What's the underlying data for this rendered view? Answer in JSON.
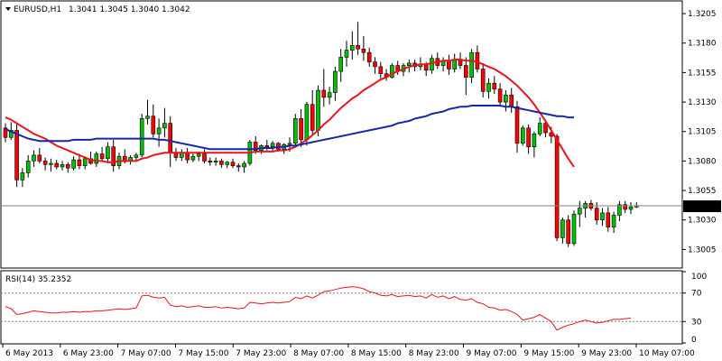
{
  "header": {
    "symbol": "EURUSD,H1",
    "ohlc": "1.3041 1.3045 1.3040 1.3042"
  },
  "rsi_header": {
    "label": "RSI(14) 35.2352"
  },
  "colors": {
    "background": "#ffffff",
    "frame": "#000000",
    "bull": "#00c000",
    "bear": "#ff0000",
    "wick": "#000000",
    "ma_fast": "#e8141e",
    "ma_slow": "#1428a8",
    "rsi_line": "#e8141e",
    "level_line": "#808080",
    "price_marker_bg": "#000000",
    "price_marker_fg": "#ffffff"
  },
  "icons": {
    "header_dropdown": "triangle-down-icon"
  },
  "chart_data": [
    {
      "type": "candlestick",
      "title": "EURUSD,H1",
      "ylim": [
        1.299,
        1.3215
      ],
      "y_ticks": [
        "1.3205",
        "1.3180",
        "1.3155",
        "1.3130",
        "1.3105",
        "1.3080",
        "1.3055",
        "1.3030",
        "1.3005"
      ],
      "x_ticks": [
        "6 May 2013",
        "6 May 23:00",
        "7 May 07:00",
        "7 May 15:00",
        "7 May 23:00",
        "8 May 07:00",
        "8 May 15:00",
        "8 May 23:00",
        "9 May 07:00",
        "9 May 15:00",
        "9 May 23:00",
        "10 May 07:00"
      ],
      "current_price": "1.3042",
      "candles": [
        [
          1.3108,
          1.3112,
          1.3096,
          1.31
        ],
        [
          1.31,
          1.3113,
          1.3098,
          1.3106
        ],
        [
          1.3106,
          1.3111,
          1.3058,
          1.3064
        ],
        [
          1.3064,
          1.3074,
          1.3058,
          1.307
        ],
        [
          1.307,
          1.3085,
          1.3066,
          1.308
        ],
        [
          1.308,
          1.3089,
          1.3075,
          1.3085
        ],
        [
          1.3085,
          1.3091,
          1.3078,
          1.308
        ],
        [
          1.308,
          1.3083,
          1.3072,
          1.3077
        ],
        [
          1.3077,
          1.3082,
          1.3071,
          1.3078
        ],
        [
          1.3078,
          1.3081,
          1.3073,
          1.3075
        ],
        [
          1.3075,
          1.308,
          1.3072,
          1.3077
        ],
        [
          1.3077,
          1.3079,
          1.307,
          1.3074
        ],
        [
          1.3074,
          1.3084,
          1.3072,
          1.3081
        ],
        [
          1.3081,
          1.3086,
          1.3073,
          1.3076
        ],
        [
          1.3076,
          1.3084,
          1.3073,
          1.3082
        ],
        [
          1.3082,
          1.3088,
          1.3077,
          1.3078
        ],
        [
          1.3078,
          1.3088,
          1.3075,
          1.3086
        ],
        [
          1.3086,
          1.3092,
          1.308,
          1.3082
        ],
        [
          1.3082,
          1.3096,
          1.3078,
          1.3092
        ],
        [
          1.3092,
          1.3098,
          1.3071,
          1.3076
        ],
        [
          1.3076,
          1.3087,
          1.3073,
          1.3084
        ],
        [
          1.3084,
          1.309,
          1.3078,
          1.308
        ],
        [
          1.308,
          1.3085,
          1.3077,
          1.3083
        ],
        [
          1.3083,
          1.3087,
          1.308,
          1.3085
        ],
        [
          1.3085,
          1.312,
          1.3083,
          1.3116
        ],
        [
          1.3116,
          1.3132,
          1.3111,
          1.3118
        ],
        [
          1.3118,
          1.3128,
          1.31,
          1.3103
        ],
        [
          1.3103,
          1.3116,
          1.3092,
          1.3108
        ],
        [
          1.3108,
          1.3125,
          1.31,
          1.3112
        ],
        [
          1.3112,
          1.3118,
          1.3075,
          1.3087
        ],
        [
          1.3087,
          1.3091,
          1.308,
          1.3083
        ],
        [
          1.3083,
          1.309,
          1.308,
          1.3087
        ],
        [
          1.3087,
          1.3091,
          1.3078,
          1.3081
        ],
        [
          1.3081,
          1.3086,
          1.3079,
          1.3084
        ],
        [
          1.3084,
          1.3088,
          1.308,
          1.3086
        ],
        [
          1.3086,
          1.309,
          1.3078,
          1.308
        ],
        [
          1.308,
          1.3083,
          1.3076,
          1.3079
        ],
        [
          1.3079,
          1.3083,
          1.3076,
          1.308
        ],
        [
          1.308,
          1.3082,
          1.3074,
          1.3077
        ],
        [
          1.3077,
          1.308,
          1.3074,
          1.3079
        ],
        [
          1.3079,
          1.3082,
          1.3074,
          1.3076
        ],
        [
          1.3076,
          1.3078,
          1.3071,
          1.3075
        ],
        [
          1.3075,
          1.308,
          1.307,
          1.3078
        ],
        [
          1.3078,
          1.3098,
          1.3076,
          1.3096
        ],
        [
          1.3096,
          1.3101,
          1.3086,
          1.3089
        ],
        [
          1.3089,
          1.3094,
          1.3086,
          1.3093
        ],
        [
          1.3093,
          1.3098,
          1.3089,
          1.3092
        ],
        [
          1.3092,
          1.3097,
          1.3088,
          1.3095
        ],
        [
          1.3095,
          1.3096,
          1.3088,
          1.309
        ],
        [
          1.309,
          1.3095,
          1.3086,
          1.3094
        ],
        [
          1.3094,
          1.31,
          1.3088,
          1.3095
        ],
        [
          1.3095,
          1.312,
          1.3093,
          1.3116
        ],
        [
          1.3116,
          1.3124,
          1.3092,
          1.3098
        ],
        [
          1.3098,
          1.313,
          1.3093,
          1.3128
        ],
        [
          1.3128,
          1.314,
          1.3103,
          1.3106
        ],
        [
          1.3106,
          1.3144,
          1.3101,
          1.314
        ],
        [
          1.314,
          1.3158,
          1.3126,
          1.3134
        ],
        [
          1.3134,
          1.3143,
          1.3128,
          1.3138
        ],
        [
          1.3138,
          1.316,
          1.3131,
          1.3156
        ],
        [
          1.3156,
          1.3175,
          1.3147,
          1.3168
        ],
        [
          1.3168,
          1.3182,
          1.316,
          1.3174
        ],
        [
          1.3174,
          1.319,
          1.3166,
          1.3178
        ],
        [
          1.3178,
          1.3198,
          1.317,
          1.3175
        ],
        [
          1.3175,
          1.3186,
          1.3165,
          1.3172
        ],
        [
          1.3172,
          1.3176,
          1.316,
          1.3164
        ],
        [
          1.3164,
          1.3168,
          1.3154,
          1.316
        ],
        [
          1.316,
          1.3164,
          1.315,
          1.3154
        ],
        [
          1.3154,
          1.3158,
          1.3148,
          1.3151
        ],
        [
          1.3151,
          1.3163,
          1.315,
          1.3161
        ],
        [
          1.3161,
          1.3165,
          1.3153,
          1.3156
        ],
        [
          1.3156,
          1.3163,
          1.3152,
          1.3161
        ],
        [
          1.3161,
          1.3166,
          1.3155,
          1.3163
        ],
        [
          1.3163,
          1.3166,
          1.3156,
          1.316
        ],
        [
          1.316,
          1.3168,
          1.3157,
          1.3162
        ],
        [
          1.3162,
          1.3164,
          1.3152,
          1.3157
        ],
        [
          1.3157,
          1.317,
          1.3154,
          1.3167
        ],
        [
          1.3167,
          1.3172,
          1.3158,
          1.3161
        ],
        [
          1.3161,
          1.3168,
          1.3156,
          1.3165
        ],
        [
          1.3165,
          1.317,
          1.3153,
          1.3158
        ],
        [
          1.3158,
          1.3171,
          1.3155,
          1.3166
        ],
        [
          1.3166,
          1.3172,
          1.3158,
          1.3161
        ],
        [
          1.3161,
          1.3168,
          1.3136,
          1.3151
        ],
        [
          1.3151,
          1.3175,
          1.3146,
          1.3172
        ],
        [
          1.3172,
          1.3178,
          1.3155,
          1.3158
        ],
        [
          1.3158,
          1.3163,
          1.3134,
          1.3139
        ],
        [
          1.3139,
          1.315,
          1.3133,
          1.3146
        ],
        [
          1.3146,
          1.3152,
          1.3137,
          1.3141
        ],
        [
          1.3141,
          1.3146,
          1.3126,
          1.313
        ],
        [
          1.313,
          1.314,
          1.3122,
          1.3136
        ],
        [
          1.3136,
          1.3142,
          1.3121,
          1.3126
        ],
        [
          1.3126,
          1.3131,
          1.3087,
          1.3095
        ],
        [
          1.3095,
          1.311,
          1.3093,
          1.3108
        ],
        [
          1.3108,
          1.3111,
          1.3086,
          1.3092
        ],
        [
          1.3092,
          1.3105,
          1.3083,
          1.3103
        ],
        [
          1.3103,
          1.3117,
          1.3101,
          1.3112
        ],
        [
          1.3112,
          1.3115,
          1.31,
          1.3104
        ],
        [
          1.3104,
          1.3109,
          1.3095,
          1.3101
        ],
        [
          1.3101,
          1.3103,
          1.3012,
          1.3015
        ],
        [
          1.3015,
          1.3032,
          1.301,
          1.303
        ],
        [
          1.303,
          1.3034,
          1.3007,
          1.301
        ],
        [
          1.301,
          1.3038,
          1.3008,
          1.3035
        ],
        [
          1.3035,
          1.3046,
          1.3024,
          1.304
        ],
        [
          1.304,
          1.3046,
          1.3032,
          1.3044
        ],
        [
          1.3044,
          1.3047,
          1.3038,
          1.304
        ],
        [
          1.304,
          1.3045,
          1.3026,
          1.303
        ],
        [
          1.303,
          1.304,
          1.3025,
          1.3036
        ],
        [
          1.3036,
          1.3041,
          1.302,
          1.3024
        ],
        [
          1.3024,
          1.3037,
          1.3019,
          1.3034
        ],
        [
          1.3034,
          1.3046,
          1.3029,
          1.3043
        ],
        [
          1.3043,
          1.3046,
          1.3036,
          1.3039
        ],
        [
          1.3039,
          1.3045,
          1.3035,
          1.3041
        ],
        [
          1.3041,
          1.3045,
          1.304,
          1.3042
        ]
      ],
      "series": [
        {
          "values": [
            1.3117,
            1.3115,
            1.3112,
            1.3109,
            1.3106,
            1.3103,
            1.3101,
            1.3099,
            1.3096,
            1.3093,
            1.3091,
            1.3089,
            1.3087,
            1.3085,
            1.3083,
            1.3081,
            1.308,
            1.308,
            1.3079,
            1.3079,
            1.308,
            1.308,
            1.308,
            1.308,
            1.3082,
            1.3083,
            1.3085,
            1.3086,
            1.3087,
            1.3087,
            1.3087,
            1.3087,
            1.3087,
            1.3087,
            1.3087,
            1.3087,
            1.3087,
            1.3087,
            1.3087,
            1.3087,
            1.3087,
            1.3087,
            1.3087,
            1.3087,
            1.3088,
            1.3088,
            1.3088,
            1.3088,
            1.3089,
            1.3089,
            1.309,
            1.3092,
            1.3095,
            1.3098,
            1.3102,
            1.3106,
            1.3111,
            1.3115,
            1.312,
            1.3125,
            1.3129,
            1.3133,
            1.3136,
            1.314,
            1.3143,
            1.3146,
            1.3149,
            1.3151,
            1.3154,
            1.3156,
            1.3158,
            1.316,
            1.3161,
            1.3162,
            1.3162,
            1.3163,
            1.3164,
            1.3165,
            1.3165,
            1.3166,
            1.3166,
            1.3165,
            1.3165,
            1.3164,
            1.3162,
            1.316,
            1.3158,
            1.3155,
            1.3152,
            1.3148,
            1.3144,
            1.3139,
            1.3134,
            1.3128,
            1.3121,
            1.3114,
            1.3106,
            1.3098,
            1.309,
            1.3082,
            1.3075
          ]
        },
        {
          "values": [
            1.3107,
            1.3105,
            1.3103,
            1.3101,
            1.3099,
            1.3098,
            1.3097,
            1.3097,
            1.3097,
            1.3097,
            1.3097,
            1.3097,
            1.3098,
            1.3098,
            1.3098,
            1.3098,
            1.3099,
            1.3099,
            1.3099,
            1.3099,
            1.3099,
            1.3099,
            1.3099,
            1.3099,
            1.3099,
            1.3099,
            1.3099,
            1.3098,
            1.3098,
            1.3097,
            1.3096,
            1.3095,
            1.3094,
            1.3093,
            1.3092,
            1.3091,
            1.309,
            1.309,
            1.309,
            1.309,
            1.309,
            1.309,
            1.309,
            1.309,
            1.309,
            1.3091,
            1.3091,
            1.3091,
            1.3092,
            1.3092,
            1.3093,
            1.3093,
            1.3094,
            1.3095,
            1.3096,
            1.3097,
            1.3098,
            1.3099,
            1.31,
            1.3101,
            1.3102,
            1.3103,
            1.3104,
            1.3105,
            1.3106,
            1.3107,
            1.3108,
            1.3109,
            1.311,
            1.3112,
            1.3113,
            1.3114,
            1.3116,
            1.3117,
            1.3118,
            1.312,
            1.3121,
            1.3122,
            1.3124,
            1.3125,
            1.3126,
            1.3126,
            1.3127,
            1.3127,
            1.3127,
            1.3127,
            1.3127,
            1.3127,
            1.3126,
            1.3126,
            1.3125,
            1.3124,
            1.3123,
            1.3122,
            1.3121,
            1.312,
            1.3119,
            1.3118,
            1.3118,
            1.3117,
            1.3117
          ]
        }
      ]
    },
    {
      "type": "line",
      "title": "RSI(14) 35.2352",
      "ylim": [
        0,
        100
      ],
      "y_ticks": [
        "100",
        "70",
        "30",
        "0"
      ],
      "levels": [
        70,
        30
      ],
      "series": [
        {
          "values": [
            51,
            48,
            40,
            41,
            43,
            45,
            44,
            43,
            42,
            42,
            43,
            43,
            44,
            43,
            44,
            44,
            45,
            45,
            46,
            47,
            48,
            47,
            48,
            49,
            66,
            67,
            64,
            63,
            64,
            53,
            51,
            52,
            50,
            51,
            52,
            50,
            50,
            51,
            49,
            50,
            49,
            48,
            49,
            57,
            56,
            55,
            56,
            57,
            56,
            57,
            58,
            64,
            62,
            66,
            63,
            67,
            72,
            73,
            75,
            77,
            78,
            79,
            78,
            76,
            72,
            70,
            67,
            66,
            68,
            65,
            66,
            67,
            65,
            66,
            63,
            68,
            64,
            66,
            62,
            65,
            61,
            60,
            62,
            57,
            55,
            50,
            49,
            46,
            47,
            44,
            40,
            32,
            34,
            36,
            40,
            35,
            30,
            18,
            22,
            25,
            27,
            30,
            32,
            30,
            28,
            29,
            31,
            33,
            33,
            34,
            35
          ]
        }
      ]
    }
  ],
  "notes": "candles are [open, high, low, close]; series values are per-bar in data units"
}
